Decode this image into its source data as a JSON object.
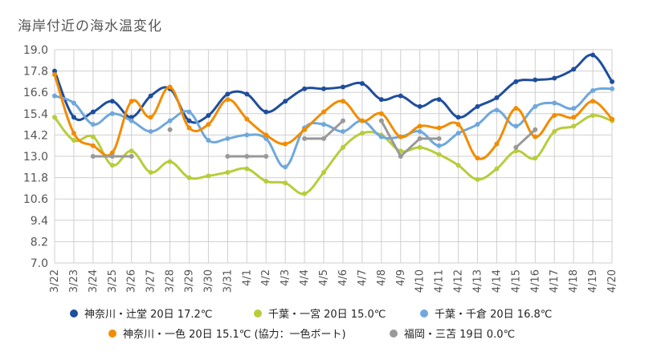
{
  "chart_data": {
    "type": "line",
    "title": "海岸付近の海水温変化",
    "xlabel": "",
    "ylabel": "",
    "categories": [
      "3/22",
      "3/23",
      "3/24",
      "3/25",
      "3/26",
      "3/27",
      "3/28",
      "3/29",
      "3/30",
      "3/31",
      "4/1",
      "4/2",
      "4/3",
      "4/4",
      "4/5",
      "4/6",
      "4/7",
      "4/8",
      "4/9",
      "4/10",
      "4/11",
      "4/12",
      "4/13",
      "4/14",
      "4/15",
      "4/16",
      "4/17",
      "4/18",
      "4/19",
      "4/20"
    ],
    "ylim": [
      7.0,
      19.0
    ],
    "yticks": [
      "19.0",
      "17.8",
      "16.6",
      "15.4",
      "14.2",
      "13.0",
      "11.8",
      "10.6",
      "9.4",
      "8.2",
      "7.0"
    ],
    "grid": true,
    "legend_position": "bottom",
    "series": [
      {
        "name": "神奈川・辻堂 20日 17.2℃",
        "color": "#1f4e9c",
        "smooth": true,
        "values": [
          17.8,
          15.2,
          15.5,
          16.1,
          15.2,
          16.4,
          16.8,
          15.0,
          15.3,
          16.5,
          16.5,
          15.5,
          16.1,
          16.8,
          16.8,
          16.9,
          17.1,
          16.2,
          16.4,
          15.8,
          16.2,
          15.2,
          15.8,
          16.3,
          17.2,
          17.3,
          17.4,
          17.9,
          18.7,
          17.2
        ]
      },
      {
        "name": "千葉・一宮 20日 15.0℃",
        "color": "#b8cc3c",
        "smooth": true,
        "values": [
          15.2,
          13.9,
          14.1,
          12.5,
          13.3,
          12.1,
          12.7,
          11.8,
          11.9,
          12.1,
          12.3,
          11.6,
          11.5,
          10.9,
          12.1,
          13.5,
          14.3,
          14.2,
          13.3,
          13.5,
          13.1,
          12.5,
          11.7,
          12.3,
          13.3,
          12.9,
          14.4,
          14.7,
          15.3,
          15.0
        ]
      },
      {
        "name": "千葉・千倉 20日 16.8℃",
        "color": "#6fa8dc",
        "smooth": true,
        "values": [
          16.4,
          16.0,
          14.8,
          15.4,
          15.0,
          14.4,
          15.0,
          15.5,
          13.9,
          14.0,
          14.2,
          14.0,
          12.4,
          14.6,
          14.8,
          14.4,
          15.0,
          14.1,
          14.1,
          14.4,
          13.6,
          14.3,
          14.8,
          15.6,
          14.7,
          15.8,
          16.0,
          15.7,
          16.7,
          16.8
        ]
      },
      {
        "name": "神奈川・一色 20日 15.1℃ (協力：一色ボート)",
        "color": "#f28c00",
        "smooth": true,
        "values": [
          17.6,
          14.3,
          13.6,
          13.2,
          16.1,
          15.2,
          16.9,
          14.6,
          14.8,
          16.2,
          15.1,
          14.2,
          13.7,
          14.5,
          15.5,
          16.1,
          15.0,
          15.4,
          14.1,
          14.7,
          14.6,
          14.8,
          12.9,
          13.7,
          15.7,
          14.1,
          15.3,
          15.2,
          16.1,
          15.1
        ]
      },
      {
        "name": "福岡・三苫 19日 0.0℃",
        "color": "#999999",
        "smooth": false,
        "values": [
          null,
          null,
          13.0,
          13.0,
          13.0,
          null,
          14.5,
          null,
          null,
          13.0,
          13.0,
          13.0,
          null,
          14.0,
          14.0,
          15.0,
          null,
          15.0,
          13.0,
          14.0,
          14.0,
          null,
          null,
          null,
          13.5,
          14.5,
          null,
          null,
          null,
          null
        ]
      }
    ]
  }
}
